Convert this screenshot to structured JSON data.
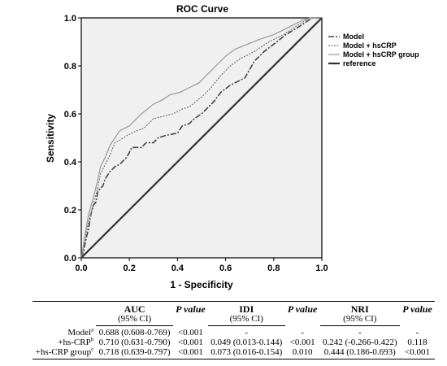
{
  "chart_data": {
    "type": "line",
    "title": "ROC Curve",
    "xlabel": "1 - Specificity",
    "ylabel": "Sensitivity",
    "xlim": [
      0.0,
      1.0
    ],
    "ylim": [
      0.0,
      1.0
    ],
    "xticks": [
      "0.0",
      "0.2",
      "0.4",
      "0.6",
      "0.8",
      "1.0"
    ],
    "yticks": [
      "0.0",
      "0.2",
      "0.4",
      "0.6",
      "0.8",
      "1.0"
    ],
    "grid": false,
    "legend_position": "right",
    "background": "#f0f0f0",
    "series": [
      {
        "name": "Model",
        "style": "dash-dot",
        "color": "#444444",
        "points": [
          [
            0,
            0
          ],
          [
            0.01,
            0.03
          ],
          [
            0.02,
            0.08
          ],
          [
            0.03,
            0.12
          ],
          [
            0.04,
            0.18
          ],
          [
            0.05,
            0.22
          ],
          [
            0.06,
            0.23
          ],
          [
            0.07,
            0.28
          ],
          [
            0.09,
            0.3
          ],
          [
            0.1,
            0.33
          ],
          [
            0.12,
            0.36
          ],
          [
            0.14,
            0.38
          ],
          [
            0.16,
            0.39
          ],
          [
            0.19,
            0.42
          ],
          [
            0.21,
            0.46
          ],
          [
            0.25,
            0.46
          ],
          [
            0.27,
            0.48
          ],
          [
            0.3,
            0.48
          ],
          [
            0.32,
            0.5
          ],
          [
            0.35,
            0.51
          ],
          [
            0.4,
            0.52
          ],
          [
            0.42,
            0.55
          ],
          [
            0.45,
            0.56
          ],
          [
            0.47,
            0.58
          ],
          [
            0.5,
            0.6
          ],
          [
            0.55,
            0.65
          ],
          [
            0.58,
            0.69
          ],
          [
            0.62,
            0.72
          ],
          [
            0.68,
            0.75
          ],
          [
            0.72,
            0.82
          ],
          [
            0.76,
            0.86
          ],
          [
            0.8,
            0.89
          ],
          [
            0.85,
            0.93
          ],
          [
            0.9,
            0.96
          ],
          [
            0.93,
            0.98
          ],
          [
            0.96,
            1.0
          ],
          [
            1.0,
            1.0
          ]
        ]
      },
      {
        "name": "Model + hsCRP",
        "style": "dotted",
        "color": "#777777",
        "points": [
          [
            0,
            0
          ],
          [
            0.01,
            0.05
          ],
          [
            0.02,
            0.1
          ],
          [
            0.03,
            0.15
          ],
          [
            0.05,
            0.22
          ],
          [
            0.07,
            0.3
          ],
          [
            0.08,
            0.35
          ],
          [
            0.1,
            0.39
          ],
          [
            0.12,
            0.43
          ],
          [
            0.14,
            0.48
          ],
          [
            0.16,
            0.49
          ],
          [
            0.19,
            0.51
          ],
          [
            0.23,
            0.53
          ],
          [
            0.26,
            0.54
          ],
          [
            0.3,
            0.58
          ],
          [
            0.34,
            0.59
          ],
          [
            0.38,
            0.6
          ],
          [
            0.42,
            0.62
          ],
          [
            0.45,
            0.63
          ],
          [
            0.5,
            0.67
          ],
          [
            0.54,
            0.71
          ],
          [
            0.58,
            0.76
          ],
          [
            0.62,
            0.8
          ],
          [
            0.66,
            0.83
          ],
          [
            0.72,
            0.86
          ],
          [
            0.78,
            0.9
          ],
          [
            0.84,
            0.93
          ],
          [
            0.9,
            0.97
          ],
          [
            0.95,
            1.0
          ],
          [
            1.0,
            1.0
          ]
        ]
      },
      {
        "name": "Model + hsCRP group",
        "style": "solid",
        "color": "#999999",
        "points": [
          [
            0,
            0
          ],
          [
            0.01,
            0.06
          ],
          [
            0.02,
            0.12
          ],
          [
            0.03,
            0.18
          ],
          [
            0.05,
            0.25
          ],
          [
            0.07,
            0.33
          ],
          [
            0.08,
            0.38
          ],
          [
            0.1,
            0.42
          ],
          [
            0.12,
            0.47
          ],
          [
            0.14,
            0.5
          ],
          [
            0.16,
            0.53
          ],
          [
            0.2,
            0.55
          ],
          [
            0.25,
            0.6
          ],
          [
            0.3,
            0.64
          ],
          [
            0.34,
            0.66
          ],
          [
            0.37,
            0.68
          ],
          [
            0.41,
            0.69
          ],
          [
            0.45,
            0.71
          ],
          [
            0.49,
            0.73
          ],
          [
            0.53,
            0.77
          ],
          [
            0.57,
            0.81
          ],
          [
            0.6,
            0.84
          ],
          [
            0.64,
            0.87
          ],
          [
            0.69,
            0.89
          ],
          [
            0.74,
            0.91
          ],
          [
            0.8,
            0.93
          ],
          [
            0.86,
            0.96
          ],
          [
            0.92,
            0.99
          ],
          [
            0.95,
            1.0
          ],
          [
            1.0,
            1.0
          ]
        ]
      },
      {
        "name": "reference",
        "style": "solid-thick",
        "color": "#333333",
        "points": [
          [
            0,
            0
          ],
          [
            1,
            1
          ]
        ]
      }
    ]
  },
  "table": {
    "headers": {
      "auc": "AUC",
      "auc_ci": "(95% CI)",
      "p1": "P value",
      "idi": "IDI",
      "idi_ci": "(95% CI)",
      "p2": "P value",
      "nri": "NRI",
      "nri_ci": "(95% CI)",
      "p3": "P value"
    },
    "rows": [
      {
        "label": "Model",
        "sup": "a",
        "auc": "0.688 (0.608-0.769)",
        "p1": "<0.001",
        "idi": "-",
        "p2": "-",
        "nri": "-",
        "p3": "-"
      },
      {
        "label": "+hs-CRP",
        "sup": "b",
        "auc": "0.710 (0.631-0.790)",
        "p1": "<0.001",
        "idi": "0.049 (0.013-0.144)",
        "p2": "<0.001",
        "nri": "0.242 (-0.266-0.422)",
        "p3": "0.118"
      },
      {
        "label": "+hs-CRP group",
        "sup": "c",
        "auc": "0.718 (0.639-0.797)",
        "p1": "<0.001",
        "idi": "0.073 (0.016-0.154)",
        "p2": "0.010",
        "nri": "0.444 (0.186-0.693)",
        "p3": "<0.001"
      }
    ]
  }
}
